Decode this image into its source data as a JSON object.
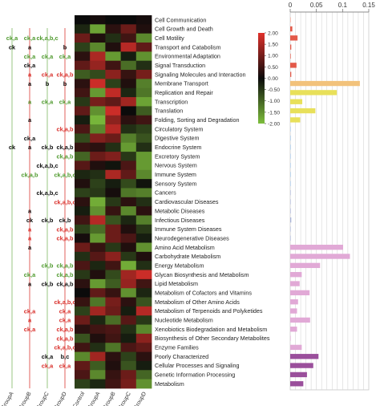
{
  "chart_data": {
    "type": "heatmap",
    "heatmap": {
      "columns": [
        "Control",
        "GroupA",
        "GroupB",
        "GroupC",
        "GroupD"
      ],
      "rows": [
        "Cell Communication",
        "Cell Growth and Death",
        "Cell Motility",
        "Transport and Catabolism",
        "Environmental Adaptation",
        "Signal Transduction",
        "Signaling Molecules and Interaction",
        "Membrane Transport",
        "Replication and Repair",
        "Transcription",
        "Translation",
        "Folding, Sorting and Degradation",
        "Circulatory System",
        "Digestive System",
        "Endocrine System",
        "Excretory System",
        "Nervous System",
        "Immune System",
        "Sensory System",
        "Cancers",
        "Cardiovascular Diseases",
        "Metabolic Diseases",
        "Infectious Diseases",
        "Immune System Diseases",
        "Neurodegenerative Diseases",
        "Amino Acid Metabolism",
        "Carbohydrate Metabolism",
        "Energy Metabolism",
        "Glycan Biosynthesis and Metabolism",
        "Lipid Metabolism",
        "Metabolism of Cofactors and Vitamins",
        "Metabolism of Other Amino Acids",
        "Metabolism of Terpenoids and Polyketides",
        "Nucleotide Metabolism",
        "Xenobiotics Biodegradation and Metabolism",
        "Biosynthesis of Other Secondary Metabolites",
        "Enzyme Families",
        "Poorly Characterized",
        "Cellular Processes and Signaling",
        "Genetic Information Processing",
        "Metabolism"
      ],
      "values": [
        [
          0.0,
          0.1,
          0.0,
          0.0,
          0.1
        ],
        [
          -0.3,
          -1.7,
          0.3,
          0.9,
          0.2
        ],
        [
          0.9,
          0.2,
          -0.4,
          0.5,
          -1.4
        ],
        [
          -0.6,
          -1.4,
          0.2,
          1.6,
          0.8
        ],
        [
          0.3,
          1.5,
          -1.6,
          -0.2,
          -1.5
        ],
        [
          0.8,
          1.3,
          0.5,
          -1.1,
          -0.4
        ],
        [
          -0.9,
          -0.7,
          1.2,
          0.4,
          1.0
        ],
        [
          0.3,
          1.8,
          -0.6,
          0.2,
          -1.3
        ],
        [
          0.5,
          -1.6,
          1.7,
          -0.3,
          -1.2
        ],
        [
          -0.5,
          1.0,
          0.8,
          1.4,
          -1.7
        ],
        [
          0.8,
          -1.5,
          1.8,
          0.0,
          -0.9
        ],
        [
          -0.2,
          -1.9,
          1.2,
          0.3,
          0.5
        ],
        [
          0.6,
          -1.4,
          1.6,
          -0.4,
          -0.6
        ],
        [
          -0.7,
          1.1,
          0.9,
          -1.3,
          -0.8
        ],
        [
          0.4,
          0.3,
          -0.4,
          -1.6,
          -0.4
        ],
        [
          -1.0,
          0.9,
          1.1,
          -0.5,
          -1.6
        ],
        [
          0.7,
          0.2,
          -0.1,
          0.6,
          -1.6
        ],
        [
          -0.3,
          -0.4,
          1.5,
          0.8,
          -1.4
        ],
        [
          0.2,
          -0.6,
          -0.2,
          -0.7,
          -0.1
        ],
        [
          -0.6,
          -0.5,
          0.1,
          -1.2,
          -1.3
        ],
        [
          0.3,
          -1.8,
          -0.5,
          0.3,
          -0.4
        ],
        [
          -0.2,
          -1.5,
          0.4,
          -1.4,
          0.3
        ],
        [
          0.5,
          1.6,
          -0.8,
          -0.3,
          -1.3
        ],
        [
          -0.6,
          -1.1,
          0.9,
          0.2,
          -0.5
        ],
        [
          0.1,
          -1.6,
          0.9,
          0.6,
          -0.2
        ],
        [
          0.9,
          0.4,
          -0.5,
          0.2,
          -1.5
        ],
        [
          -0.4,
          0.7,
          1.2,
          -0.5,
          0.2
        ],
        [
          0.6,
          -0.3,
          0.5,
          -1.8,
          -0.4
        ],
        [
          -0.5,
          0.2,
          -0.7,
          1.4,
          1.8
        ],
        [
          0.3,
          -1.6,
          -0.9,
          1.3,
          0.5
        ],
        [
          0.0,
          0.8,
          0.4,
          -1.5,
          -0.3
        ],
        [
          0.4,
          -1.2,
          1.0,
          0.3,
          -0.8
        ],
        [
          -0.6,
          1.4,
          0.9,
          -0.2,
          1.6
        ],
        [
          0.9,
          -0.3,
          -1.1,
          0.7,
          -0.5
        ],
        [
          0.3,
          0.5,
          0.6,
          -0.4,
          -1.4
        ],
        [
          -0.8,
          0.2,
          0.5,
          -0.2,
          1.2
        ],
        [
          0.5,
          -0.4,
          -1.2,
          0.6,
          0.8
        ],
        [
          -1.4,
          1.4,
          0.3,
          -0.6,
          0.3
        ],
        [
          0.8,
          -0.9,
          0.2,
          -0.8,
          -0.2
        ],
        [
          0.6,
          -1.4,
          0.4,
          0.9,
          -1.0
        ],
        [
          -0.6,
          -0.3,
          0.5,
          1.0,
          -1.5
        ]
      ],
      "colorbar": {
        "ticks": [
          "2.00",
          "1.50",
          "1.00",
          "0.50",
          "0.00",
          "-0.50",
          "-1.00",
          "-1.50",
          "-2.00"
        ],
        "range": [
          -2,
          2
        ],
        "colors": {
          "high": "#e0312b",
          "mid": "#0b0b0b",
          "low": "#7dbe3c"
        }
      }
    },
    "bars": {
      "type": "bar",
      "orientation": "horizontal",
      "xlim": [
        0,
        0.15
      ],
      "xticks": [
        "0",
        "0.05",
        "0.1",
        "0.15"
      ],
      "values": [
        0.0005,
        0.004,
        0.014,
        0.002,
        0.001,
        0.012,
        0.002,
        0.133,
        0.089,
        0.023,
        0.048,
        0.019,
        0.0005,
        0.001,
        0.001,
        0.0005,
        0.0005,
        0.001,
        0.0005,
        0.0005,
        0.0005,
        0.001,
        0.002,
        0.0005,
        0.0005,
        0.101,
        0.114,
        0.057,
        0.022,
        0.018,
        0.037,
        0.015,
        0.013,
        0.038,
        0.013,
        0.0005,
        0.022,
        0.054,
        0.044,
        0.032,
        0.025
      ],
      "bar_colors": [
        "#f29a86",
        "#e35a4a",
        "#e35a4a",
        "#e35a4a",
        "#e35a4a",
        "#e35a4a",
        "#e35a4a",
        "#f2c27b",
        "#e8e05a",
        "#e8e05a",
        "#e8e05a",
        "#e8e05a",
        "#9fc5e8",
        "#9fc5e8",
        "#9fc5e8",
        "#9fc5e8",
        "#9fc5e8",
        "#9fc5e8",
        "#9fc5e8",
        "#aab4d8",
        "#aab4d8",
        "#aab4d8",
        "#aab4d8",
        "#aab4d8",
        "#aab4d8",
        "#e1a9d6",
        "#e1a9d6",
        "#e1a9d6",
        "#e1a9d6",
        "#e1a9d6",
        "#e1a9d6",
        "#e1a9d6",
        "#e1a9d6",
        "#e1a9d6",
        "#e1a9d6",
        "#e1a9d6",
        "#e1a9d6",
        "#9a4f9b",
        "#9a4f9b",
        "#9a4f9b",
        "#9a4f9b"
      ]
    },
    "significance": {
      "groups": [
        "GroupA",
        "GroupB",
        "GroupC",
        "GroupD"
      ],
      "annotations": [
        {
          "row": 2,
          "group": "GroupA",
          "text": "ck,a",
          "color": "#4f9a2e"
        },
        {
          "row": 2,
          "group": "GroupB",
          "text": "ck,a",
          "color": "#4f9a2e"
        },
        {
          "row": 2,
          "group": "GroupC",
          "text": "ck,a,b,c",
          "color": "#4f9a2e"
        },
        {
          "row": 3,
          "group": "GroupA",
          "text": "ck",
          "color": "#111111"
        },
        {
          "row": 3,
          "group": "GroupB",
          "text": "a",
          "color": "#111111"
        },
        {
          "row": 3,
          "group": "GroupD",
          "text": "b",
          "color": "#111111"
        },
        {
          "row": 4,
          "group": "GroupB",
          "text": "ck,a",
          "color": "#4f9a2e"
        },
        {
          "row": 4,
          "group": "GroupC",
          "text": "ck,a",
          "color": "#4f9a2e"
        },
        {
          "row": 4,
          "group": "GroupD",
          "text": "ck,a",
          "color": "#4f9a2e"
        },
        {
          "row": 5,
          "group": "GroupB",
          "text": "ck,a",
          "color": "#111111"
        },
        {
          "row": 6,
          "group": "GroupB",
          "text": "a",
          "color": "#d9302b"
        },
        {
          "row": 6,
          "group": "GroupC",
          "text": "ck,a",
          "color": "#d9302b"
        },
        {
          "row": 6,
          "group": "GroupD",
          "text": "ck,a,b",
          "color": "#d9302b"
        },
        {
          "row": 7,
          "group": "GroupB",
          "text": "a",
          "color": "#111111"
        },
        {
          "row": 7,
          "group": "GroupC",
          "text": "b",
          "color": "#111111"
        },
        {
          "row": 7,
          "group": "GroupD",
          "text": "b",
          "color": "#111111"
        },
        {
          "row": 9,
          "group": "GroupB",
          "text": "a",
          "color": "#4f9a2e"
        },
        {
          "row": 9,
          "group": "GroupC",
          "text": "ck,a",
          "color": "#4f9a2e"
        },
        {
          "row": 9,
          "group": "GroupD",
          "text": "ck,a",
          "color": "#4f9a2e"
        },
        {
          "row": 11,
          "group": "GroupB",
          "text": "a",
          "color": "#111111"
        },
        {
          "row": 12,
          "group": "GroupD",
          "text": "ck,a,b",
          "color": "#d9302b"
        },
        {
          "row": 13,
          "group": "GroupB",
          "text": "ck,a",
          "color": "#111111"
        },
        {
          "row": 14,
          "group": "GroupA",
          "text": "ck",
          "color": "#111111"
        },
        {
          "row": 14,
          "group": "GroupB",
          "text": "a",
          "color": "#111111"
        },
        {
          "row": 14,
          "group": "GroupC",
          "text": "ck,b",
          "color": "#111111"
        },
        {
          "row": 14,
          "group": "GroupD",
          "text": "ck,a,b",
          "color": "#111111"
        },
        {
          "row": 15,
          "group": "GroupD",
          "text": "ck,a,b",
          "color": "#4f9a2e"
        },
        {
          "row": 16,
          "group": "GroupC",
          "text": "ck,a,b,c",
          "color": "#111111"
        },
        {
          "row": 17,
          "group": "GroupB",
          "text": "ck,a,b",
          "color": "#4f9a2e"
        },
        {
          "row": 17,
          "group": "GroupD",
          "text": "ck,a,b,c",
          "color": "#4f9a2e"
        },
        {
          "row": 19,
          "group": "GroupC",
          "text": "ck,a,b,c",
          "color": "#111111"
        },
        {
          "row": 20,
          "group": "GroupD",
          "text": "ck,a,b,c",
          "color": "#d9302b"
        },
        {
          "row": 21,
          "group": "GroupB",
          "text": "a",
          "color": "#111111"
        },
        {
          "row": 22,
          "group": "GroupB",
          "text": "ck",
          "color": "#111111"
        },
        {
          "row": 22,
          "group": "GroupC",
          "text": "ck,b",
          "color": "#111111"
        },
        {
          "row": 22,
          "group": "GroupD",
          "text": "ck,b",
          "color": "#111111"
        },
        {
          "row": 23,
          "group": "GroupB",
          "text": "a",
          "color": "#d9302b"
        },
        {
          "row": 23,
          "group": "GroupD",
          "text": "ck,a,b",
          "color": "#d9302b"
        },
        {
          "row": 24,
          "group": "GroupB",
          "text": "a",
          "color": "#d9302b"
        },
        {
          "row": 24,
          "group": "GroupD",
          "text": "ck,a,b",
          "color": "#d9302b"
        },
        {
          "row": 25,
          "group": "GroupB",
          "text": "a",
          "color": "#111111"
        },
        {
          "row": 27,
          "group": "GroupC",
          "text": "ck,b",
          "color": "#4f9a2e"
        },
        {
          "row": 27,
          "group": "GroupD",
          "text": "ck,a,b",
          "color": "#4f9a2e"
        },
        {
          "row": 28,
          "group": "GroupB",
          "text": "ck,a",
          "color": "#4f9a2e"
        },
        {
          "row": 28,
          "group": "GroupD",
          "text": "ck,a,b",
          "color": "#4f9a2e"
        },
        {
          "row": 29,
          "group": "GroupB",
          "text": "a",
          "color": "#111111"
        },
        {
          "row": 29,
          "group": "GroupC",
          "text": "ck,b",
          "color": "#111111"
        },
        {
          "row": 29,
          "group": "GroupD",
          "text": "ck,a,b",
          "color": "#111111"
        },
        {
          "row": 31,
          "group": "GroupD",
          "text": "ck,a,b,c",
          "color": "#d9302b"
        },
        {
          "row": 32,
          "group": "GroupB",
          "text": "ck,a",
          "color": "#d9302b"
        },
        {
          "row": 32,
          "group": "GroupD",
          "text": "ck,a",
          "color": "#d9302b"
        },
        {
          "row": 33,
          "group": "GroupB",
          "text": "a",
          "color": "#d9302b"
        },
        {
          "row": 33,
          "group": "GroupD",
          "text": "ck,a",
          "color": "#d9302b"
        },
        {
          "row": 34,
          "group": "GroupB",
          "text": "ck,a",
          "color": "#d9302b"
        },
        {
          "row": 34,
          "group": "GroupD",
          "text": "ck,a,b",
          "color": "#d9302b"
        },
        {
          "row": 35,
          "group": "GroupD",
          "text": "ck,a,b",
          "color": "#d9302b"
        },
        {
          "row": 36,
          "group": "GroupD",
          "text": "ck,a,b,c",
          "color": "#d9302b"
        },
        {
          "row": 37,
          "group": "GroupC",
          "text": "ck,a",
          "color": "#111111"
        },
        {
          "row": 37,
          "group": "GroupD",
          "text": "b,c",
          "color": "#111111"
        },
        {
          "row": 38,
          "group": "GroupC",
          "text": "ck,a",
          "color": "#d9302b"
        },
        {
          "row": 38,
          "group": "GroupD",
          "text": "ck,a",
          "color": "#d9302b"
        }
      ]
    }
  }
}
